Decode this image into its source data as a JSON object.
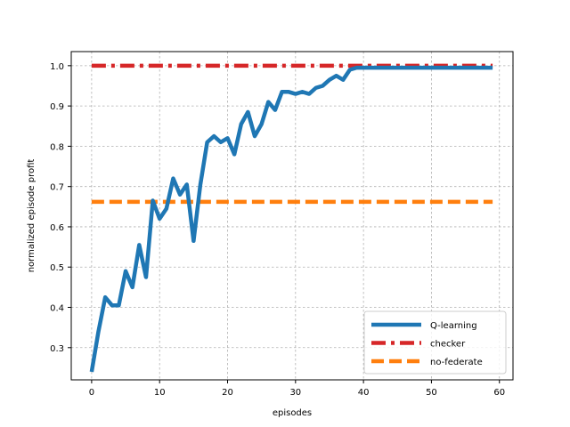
{
  "chart_data": {
    "type": "line",
    "title": "",
    "xlabel": "episodes",
    "ylabel": "normalized episode profit",
    "xlim": [
      -3,
      62
    ],
    "ylim": [
      0.22,
      1.035
    ],
    "xticks": [
      0,
      10,
      20,
      30,
      40,
      50,
      60
    ],
    "yticks": [
      0.3,
      0.4,
      0.5,
      0.6,
      0.7,
      0.8,
      0.9,
      1.0
    ],
    "xtick_labels": [
      "0",
      "10",
      "20",
      "30",
      "40",
      "50",
      "60"
    ],
    "ytick_labels": [
      "0.3",
      "0.4",
      "0.5",
      "0.6",
      "0.7",
      "0.8",
      "0.9",
      "1.0"
    ],
    "grid": true,
    "legend_position": "lower-right",
    "series": [
      {
        "name": "Q-learning",
        "color": "#1f77b4",
        "style": "solid",
        "x": [
          0,
          1,
          2,
          3,
          4,
          5,
          6,
          7,
          8,
          9,
          10,
          11,
          12,
          13,
          14,
          15,
          16,
          17,
          18,
          19,
          20,
          21,
          22,
          23,
          24,
          25,
          26,
          27,
          28,
          29,
          30,
          31,
          32,
          33,
          34,
          35,
          36,
          37,
          38,
          39,
          40,
          41,
          42,
          43,
          44,
          45,
          46,
          47,
          48,
          49,
          50,
          51,
          52,
          53,
          54,
          55,
          56,
          57,
          58,
          59
        ],
        "y": [
          0.24,
          0.34,
          0.425,
          0.405,
          0.405,
          0.49,
          0.45,
          0.555,
          0.475,
          0.665,
          0.62,
          0.645,
          0.72,
          0.68,
          0.705,
          0.565,
          0.705,
          0.81,
          0.825,
          0.81,
          0.82,
          0.78,
          0.855,
          0.885,
          0.825,
          0.855,
          0.91,
          0.89,
          0.935,
          0.935,
          0.93,
          0.935,
          0.93,
          0.945,
          0.95,
          0.965,
          0.975,
          0.965,
          0.99,
          0.995,
          0.995,
          0.995,
          0.995,
          0.995,
          0.995,
          0.995,
          0.995,
          0.995,
          0.995,
          0.995,
          0.995,
          0.995,
          0.995,
          0.995,
          0.995,
          0.995,
          0.995,
          0.995,
          0.995,
          0.995
        ]
      },
      {
        "name": "checker",
        "color": "#d62728",
        "style": "dashdot",
        "x": [
          0,
          59
        ],
        "y": [
          1.0,
          1.0
        ]
      },
      {
        "name": "no-federate",
        "color": "#ff7f0e",
        "style": "dashed",
        "x": [
          0,
          59
        ],
        "y": [
          0.662,
          0.662
        ]
      }
    ]
  }
}
